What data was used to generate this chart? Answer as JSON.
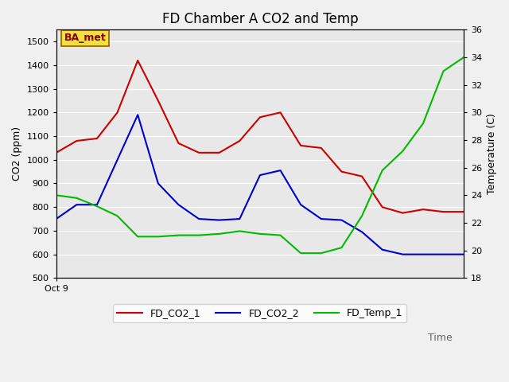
{
  "title": "FD Chamber A CO2 and Temp",
  "xlabel": "Time",
  "ylabel_left": "CO2 (ppm)",
  "ylabel_right": "Temperature (C)",
  "annotation": "BA_met",
  "ylim_left": [
    500,
    1550
  ],
  "ylim_right": [
    18,
    36
  ],
  "yticks_left": [
    500,
    600,
    700,
    800,
    900,
    1000,
    1100,
    1200,
    1300,
    1400,
    1500
  ],
  "yticks_right": [
    18,
    20,
    22,
    24,
    26,
    28,
    30,
    32,
    34,
    36
  ],
  "x": [
    0,
    1,
    2,
    3,
    4,
    5,
    6,
    7,
    8,
    9,
    10,
    11,
    12,
    13,
    14,
    15,
    16,
    17,
    18,
    19,
    20
  ],
  "fd_co2_1": [
    1030,
    1080,
    1090,
    1200,
    1420,
    1250,
    1070,
    1030,
    1030,
    1080,
    1180,
    1200,
    1060,
    1050,
    950,
    930,
    800,
    775,
    790,
    780,
    780
  ],
  "fd_co2_2": [
    750,
    810,
    810,
    1000,
    1190,
    900,
    810,
    750,
    745,
    750,
    935,
    955,
    810,
    750,
    745,
    695,
    620,
    600,
    600,
    600,
    600
  ],
  "fd_temp_1": [
    24.0,
    23.8,
    23.2,
    22.5,
    21.0,
    21.0,
    21.1,
    21.1,
    21.2,
    21.4,
    21.2,
    21.1,
    19.8,
    19.8,
    20.2,
    22.5,
    25.8,
    27.2,
    29.2,
    33.0,
    34.0
  ],
  "color_co2_1": "#cc0000",
  "color_co2_2": "#0000cc",
  "color_temp_1": "#00bb00",
  "bg_color": "#e8e8e8",
  "grid_color": "#ffffff",
  "title_fontsize": 12,
  "label_fontsize": 9,
  "legend_fontsize": 9,
  "tick_label_size": 8,
  "xtick_label": "Oct 9",
  "line_width": 1.5,
  "fig_bg": "#f0f0f0"
}
